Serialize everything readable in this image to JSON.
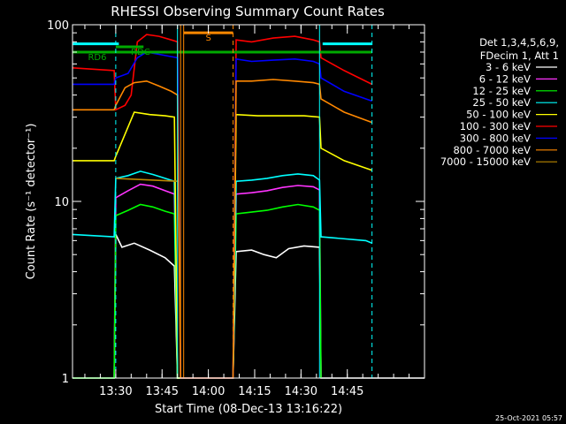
{
  "chart_data": {
    "type": "line",
    "title": "RHESSI Observing Summary Count Rates",
    "xlabel": "Start Time (08-Dec-13 13:16:22)",
    "ylabel": "Count Rate (s⁻¹ detector⁻¹)",
    "yscale": "log",
    "ylim": [
      1,
      100
    ],
    "xlim_min": [
      0,
      114
    ],
    "x_ticks": [
      {
        "min": 14,
        "label": "13:30"
      },
      {
        "min": 29,
        "label": "13:45"
      },
      {
        "min": 44,
        "label": "14:00"
      },
      {
        "min": 59,
        "label": "14:15"
      },
      {
        "min": 74,
        "label": "14:30"
      },
      {
        "min": 89,
        "label": "14:45"
      }
    ],
    "y_ticks": [
      {
        "value": 1,
        "label": "1"
      },
      {
        "value": 10,
        "label": "10"
      },
      {
        "value": 100,
        "label": "100"
      }
    ],
    "legend_title": [
      "Det 1,3,4,5,6,9,",
      "FDecim 1, Att 1"
    ],
    "legend_placement": "right",
    "timestamp": "25-Oct-2021 05:57",
    "series": [
      {
        "name": "3 - 6 keV",
        "color": "#ffffff",
        "points": [
          [
            0,
            1.0
          ],
          [
            13.5,
            1.0
          ],
          [
            14,
            6.5
          ],
          [
            16,
            5.5
          ],
          [
            20,
            5.8
          ],
          [
            25,
            5.3
          ],
          [
            30,
            4.8
          ],
          [
            33,
            4.3
          ],
          [
            34,
            1.0
          ],
          [
            52,
            1.0
          ],
          [
            53,
            5.2
          ],
          [
            58,
            5.3
          ],
          [
            62,
            5.0
          ],
          [
            66,
            4.8
          ],
          [
            70,
            5.4
          ],
          [
            75,
            5.6
          ],
          [
            80,
            5.5
          ],
          [
            80.5,
            1.0
          ],
          [
            114,
            1.0
          ]
        ]
      },
      {
        "name": "6 - 12 keV",
        "color": "#ff33ff",
        "points": [
          [
            13.5,
            1.0
          ],
          [
            14,
            10.5
          ],
          [
            18,
            11.5
          ],
          [
            22,
            12.5
          ],
          [
            26,
            12.2
          ],
          [
            30,
            11.5
          ],
          [
            33,
            11.0
          ],
          [
            34,
            1.0
          ],
          [
            52,
            1.0
          ],
          [
            53,
            11.0
          ],
          [
            58,
            11.2
          ],
          [
            63,
            11.5
          ],
          [
            68,
            12.0
          ],
          [
            73,
            12.3
          ],
          [
            78,
            12.1
          ],
          [
            80,
            11.6
          ],
          [
            80.5,
            1.0
          ]
        ]
      },
      {
        "name": "12 - 25 keV",
        "color": "#00ff00",
        "points": [
          [
            0,
            1.0
          ],
          [
            13.5,
            1.0
          ],
          [
            14,
            8.3
          ],
          [
            18,
            8.9
          ],
          [
            22,
            9.6
          ],
          [
            26,
            9.3
          ],
          [
            30,
            8.8
          ],
          [
            33,
            8.5
          ],
          [
            34,
            1.0
          ],
          [
            52,
            1.0
          ],
          [
            53,
            8.5
          ],
          [
            58,
            8.7
          ],
          [
            63,
            8.9
          ],
          [
            68,
            9.3
          ],
          [
            73,
            9.6
          ],
          [
            78,
            9.3
          ],
          [
            80,
            8.9
          ],
          [
            80.5,
            1.0
          ]
        ]
      },
      {
        "name": "25 - 50 keV",
        "color": "#00ffff",
        "points": [
          [
            0,
            6.5
          ],
          [
            13.5,
            6.3
          ],
          [
            14,
            13.5
          ],
          [
            18,
            14.0
          ],
          [
            22,
            14.8
          ],
          [
            26,
            14.2
          ],
          [
            30,
            13.5
          ],
          [
            33,
            13.0
          ],
          [
            34,
            1.0
          ],
          [
            52,
            1.0
          ],
          [
            53,
            13.0
          ],
          [
            58,
            13.2
          ],
          [
            63,
            13.5
          ],
          [
            68,
            14.0
          ],
          [
            73,
            14.3
          ],
          [
            78,
            14.0
          ],
          [
            80,
            13.2
          ],
          [
            80.5,
            6.3
          ],
          [
            95,
            6.0
          ],
          [
            97,
            5.8
          ]
        ]
      },
      {
        "name": "50 - 100 keV",
        "color": "#ffff00",
        "points": [
          [
            0,
            17.0
          ],
          [
            13.5,
            17.0
          ],
          [
            14,
            18.0
          ],
          [
            20,
            32.0
          ],
          [
            25,
            31.0
          ],
          [
            30,
            30.5
          ],
          [
            33,
            30.0
          ],
          [
            34,
            1.0
          ],
          [
            52,
            1.0
          ],
          [
            53,
            31.0
          ],
          [
            60,
            30.5
          ],
          [
            68,
            30.5
          ],
          [
            75,
            30.5
          ],
          [
            80,
            30.0
          ],
          [
            80.5,
            20.0
          ],
          [
            88,
            17.0
          ],
          [
            97,
            15.0
          ]
        ]
      },
      {
        "name": "100 - 300 keV",
        "color": "#ff0000",
        "points": [
          [
            0,
            57.0
          ],
          [
            13.5,
            55.0
          ],
          [
            14,
            33.0
          ],
          [
            17,
            35.0
          ],
          [
            19,
            40.0
          ],
          [
            21,
            80.0
          ],
          [
            24,
            88.0
          ],
          [
            28,
            86.0
          ],
          [
            32,
            82.0
          ],
          [
            34,
            80.0
          ],
          [
            35,
            1.0
          ],
          [
            52,
            1.0
          ],
          [
            53,
            82.0
          ],
          [
            58,
            80.0
          ],
          [
            65,
            84.0
          ],
          [
            72,
            86.0
          ],
          [
            78,
            82.0
          ],
          [
            80,
            80.0
          ],
          [
            80.5,
            65.0
          ],
          [
            88,
            55.0
          ],
          [
            97,
            46.0
          ]
        ]
      },
      {
        "name": "300 - 800 keV",
        "color": "#0000ff",
        "points": [
          [
            0,
            46.0
          ],
          [
            13.5,
            46.0
          ],
          [
            14,
            50.0
          ],
          [
            18,
            53.0
          ],
          [
            21,
            65.0
          ],
          [
            24,
            70.0
          ],
          [
            28,
            68.0
          ],
          [
            32,
            66.0
          ],
          [
            34,
            65.0
          ],
          [
            35,
            1.0
          ],
          [
            52,
            1.0
          ],
          [
            53,
            64.0
          ],
          [
            58,
            62.0
          ],
          [
            65,
            63.0
          ],
          [
            72,
            64.0
          ],
          [
            78,
            62.0
          ],
          [
            80,
            60.0
          ],
          [
            80.5,
            50.0
          ],
          [
            88,
            42.0
          ],
          [
            97,
            37.0
          ]
        ]
      },
      {
        "name": "800 - 7000 keV",
        "color": "#ff8800",
        "points": [
          [
            0,
            33.0
          ],
          [
            13.5,
            33.0
          ],
          [
            14,
            35.0
          ],
          [
            17,
            44.0
          ],
          [
            20,
            47.0
          ],
          [
            24,
            48.0
          ],
          [
            28,
            45.0
          ],
          [
            32,
            42.0
          ],
          [
            34,
            40.0
          ],
          [
            35,
            1.0
          ],
          [
            52,
            1.0
          ],
          [
            53,
            48.0
          ],
          [
            58,
            48.0
          ],
          [
            65,
            49.0
          ],
          [
            72,
            48.0
          ],
          [
            78,
            47.0
          ],
          [
            80,
            46.0
          ],
          [
            80.5,
            38.0
          ],
          [
            88,
            32.0
          ],
          [
            97,
            28.0
          ]
        ]
      },
      {
        "name": "7000 - 15000 keV",
        "color": "#bb8800",
        "points": [
          [
            14,
            13.5
          ],
          [
            34,
            13.0
          ]
        ]
      }
    ],
    "flag_bars": [
      {
        "label": "",
        "color": "#00ffff",
        "min_from": 0,
        "min_to": 15,
        "value": 78
      },
      {
        "label": "",
        "color": "#00ffff",
        "min_from": 81,
        "min_to": 97,
        "value": 78
      },
      {
        "label": "RD6",
        "color": "#00aa00",
        "min_from": 0,
        "min_to": 97,
        "value": 70
      },
      {
        "label": "RDC",
        "color": "#00aa00",
        "min_from": 14,
        "min_to": 23,
        "value": 75
      },
      {
        "label": "S",
        "color": "#ff8800",
        "min_from": 36,
        "min_to": 52,
        "value": 90
      }
    ],
    "event_lines": [
      {
        "min": 14,
        "color": "#00ffff",
        "style": "dashed"
      },
      {
        "min": 34,
        "color": "#00ffff",
        "style": "solid"
      },
      {
        "min": 80,
        "color": "#00ffff",
        "style": "solid"
      },
      {
        "min": 97,
        "color": "#00ffff",
        "style": "dashed"
      },
      {
        "min": 35,
        "color": "#ff8800",
        "style": "solid"
      },
      {
        "min": 36,
        "color": "#ff8800",
        "style": "solid"
      },
      {
        "min": 52,
        "color": "#ff8800",
        "style": "dashed"
      }
    ]
  }
}
